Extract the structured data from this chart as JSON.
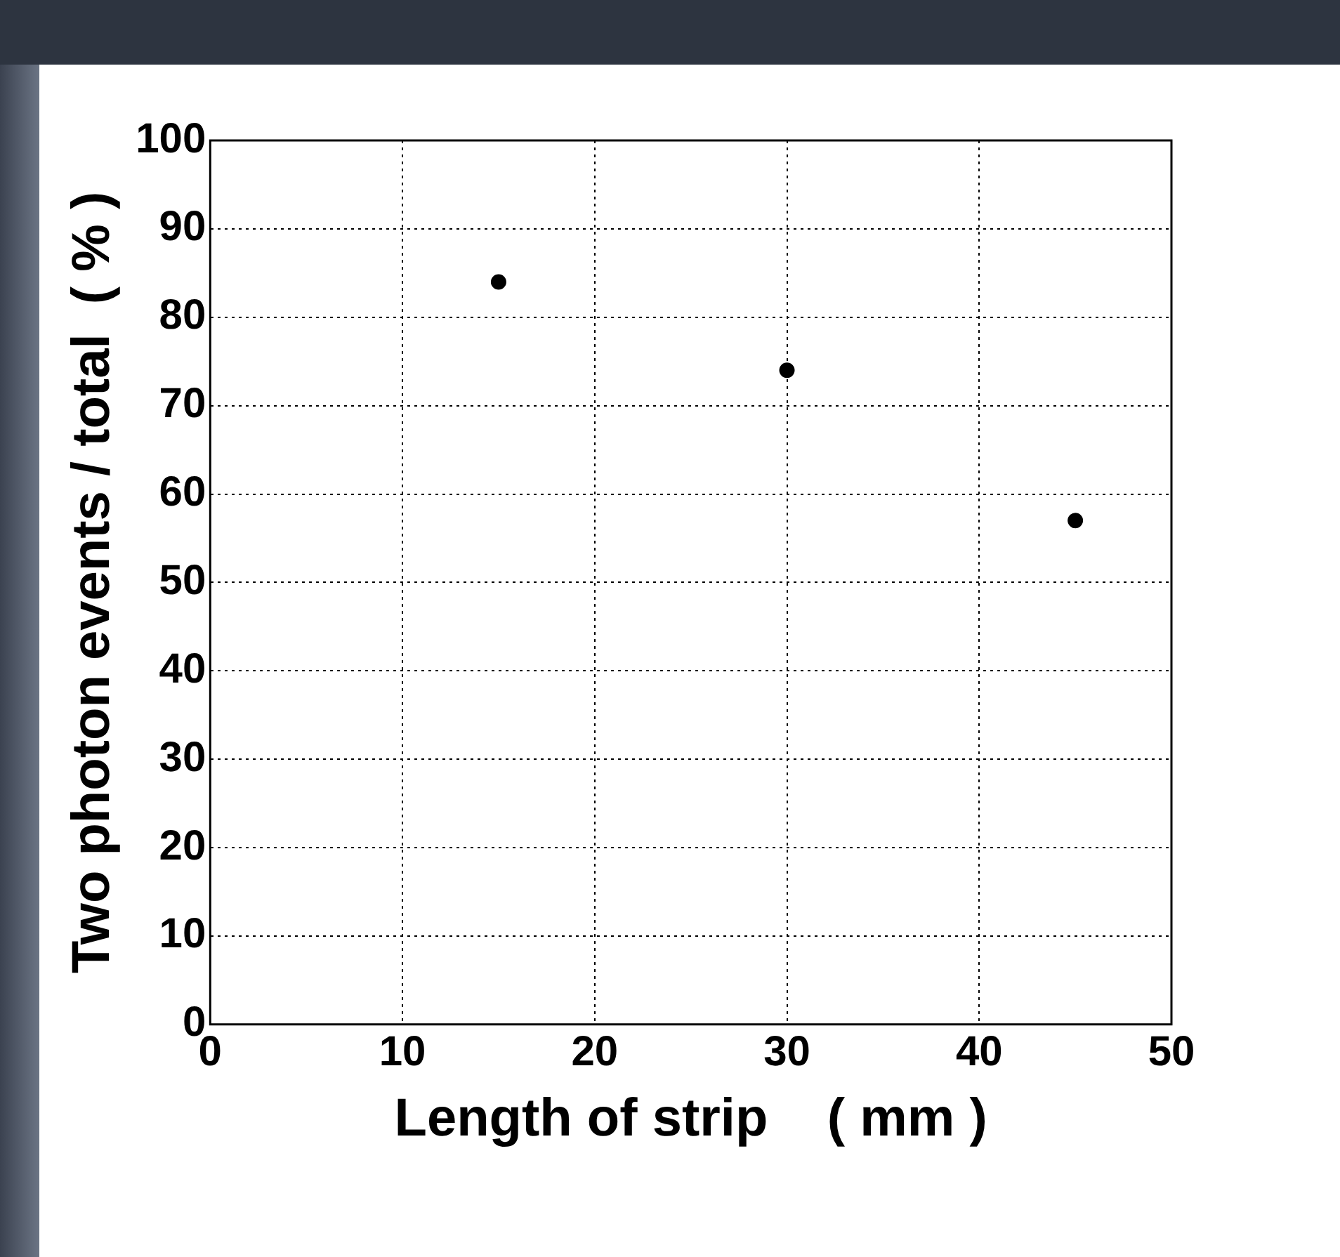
{
  "chart_data": {
    "type": "scatter",
    "xlabel": "Length of strip    ( mm )",
    "ylabel": "Two photon events / total  ( % )",
    "x": [
      15,
      30,
      45
    ],
    "series": [
      {
        "color": "#000000",
        "values": [
          84,
          74,
          57
        ]
      }
    ],
    "xlim": [
      0,
      50
    ],
    "xticks": [
      0,
      10,
      20,
      30,
      40,
      50
    ],
    "ylim": [
      0,
      100
    ],
    "yticks": [
      0,
      10,
      20,
      30,
      40,
      50,
      60,
      70,
      80,
      90,
      100
    ],
    "grid": true,
    "marker": "circle",
    "legend": false
  }
}
